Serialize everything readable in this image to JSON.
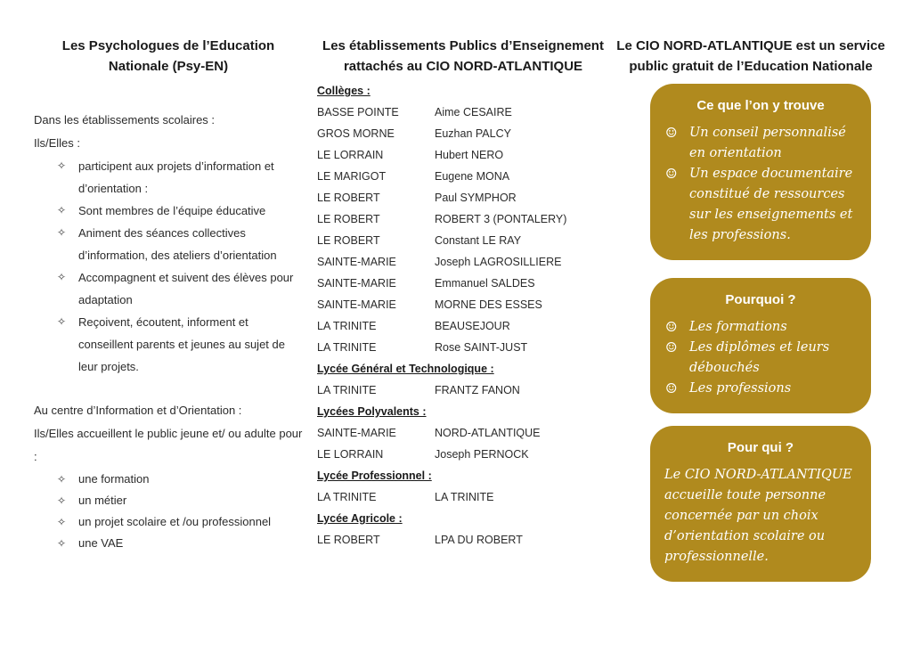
{
  "colors": {
    "gold": "#B08A1E",
    "heading": "#1a1a1a",
    "body_text": "#2b2b2b",
    "box_text": "#ffffff"
  },
  "left_panel": {
    "title": "Les Psychologues de l’Education Nationale (Psy-EN)",
    "intro1": "Dans les établissements scolaires :",
    "intro2": "Ils/Elles :",
    "bullet_char": "✧",
    "bullets": [
      "participent aux projets d’information et d’orientation :",
      "Sont membres de l’équipe éducative",
      "Animent des séances collectives d’information, des ateliers d’orientation",
      "Accompagnent et suivent des élèves pour adaptation",
      "Reçoivent, écoutent, informent et conseillent parents et jeunes au sujet de leur projets."
    ],
    "section2_intro1": "Au centre d’Information et d’Orientation :",
    "section2_intro2": "Ils/Elles accueillent le public jeune et/ ou adulte pour :",
    "section2_bullets": [
      "une formation",
      " un métier",
      "un projet scolaire et /ou professionnel",
      "une VAE"
    ]
  },
  "middle_panel": {
    "title": "Les établissements Publics d’Enseignement rattachés au CIO NORD-ATLANTIQUE",
    "sections": [
      {
        "label": "Collèges :",
        "rows": [
          [
            "BASSE POINTE",
            "Aime CESAIRE"
          ],
          [
            "GROS MORNE",
            "Euzhan PALCY"
          ],
          [
            "LE LORRAIN",
            "Hubert NERO"
          ],
          [
            "LE MARIGOT",
            "Eugene MONA"
          ],
          [
            "LE ROBERT",
            "Paul SYMPHOR"
          ],
          [
            "LE ROBERT",
            "ROBERT 3 (PONTALERY)"
          ],
          [
            "LE ROBERT",
            "Constant LE RAY"
          ],
          [
            "SAINTE-MARIE",
            "Joseph LAGROSILLIERE"
          ],
          [
            "SAINTE-MARIE",
            "Emmanuel SALDES"
          ],
          [
            "SAINTE-MARIE",
            "MORNE DES ESSES"
          ],
          [
            "LA TRINITE",
            "BEAUSEJOUR"
          ],
          [
            "LA TRINITE",
            "Rose SAINT-JUST"
          ]
        ]
      },
      {
        "label": "Lycée Général et Technologique :",
        "rows": [
          [
            "LA TRINITE",
            "FRANTZ FANON"
          ]
        ]
      },
      {
        "label": "Lycées Polyvalents :",
        "rows": [
          [
            "SAINTE-MARIE",
            "NORD-ATLANTIQUE"
          ],
          [
            "LE LORRAIN",
            "Joseph PERNOCK"
          ]
        ]
      },
      {
        "label": "Lycée Professionnel :",
        "rows": [
          [
            "LA TRINITE",
            "LA TRINITE"
          ]
        ]
      },
      {
        "label": "Lycée Agricole :",
        "rows": [
          [
            "LE ROBERT",
            "LPA DU ROBERT"
          ]
        ]
      }
    ]
  },
  "right_panel": {
    "title": "Le CIO NORD-ATLANTIQUE est un service public gratuit de l’Education Nationale",
    "bullet_char": "☺",
    "boxes": [
      {
        "title": "Ce que l’on y trouve",
        "items": [
          "Un conseil personnalisé en orientation",
          "Un espace documentaire constitué de ressources sur les enseignements et les professions."
        ]
      },
      {
        "title": "Pourquoi ?",
        "items": [
          "Les formations",
          "Les diplômes et leurs débouchés",
          "Les professions"
        ]
      },
      {
        "title": "Pour qui ?",
        "paragraph": "Le CIO NORD-ATLANTIQUE accueille toute personne concernée par un choix d’orientation scolaire ou professionnelle."
      }
    ]
  }
}
